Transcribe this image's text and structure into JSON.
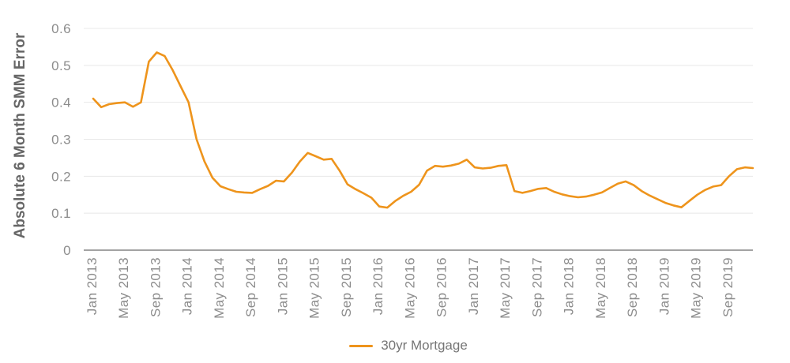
{
  "chart_data": {
    "type": "line",
    "title": "",
    "ylabel": "Absolute 6 Month SMM Error",
    "xlabel": "",
    "ylim": [
      0,
      0.6
    ],
    "yticks": [
      0,
      0.1,
      0.2,
      0.3,
      0.4,
      0.5,
      0.6
    ],
    "ytick_labels": [
      "0",
      "0.1",
      "0.2",
      "0.3",
      "0.4",
      "0.5",
      "0.6"
    ],
    "xtick_every": 4,
    "grid": "horizontal-only",
    "legend_position": "bottom-center",
    "x": [
      "Jan 2013",
      "Feb 2013",
      "Mar 2013",
      "Apr 2013",
      "May 2013",
      "Jun 2013",
      "Jul 2013",
      "Aug 2013",
      "Sep 2013",
      "Oct 2013",
      "Nov 2013",
      "Dec 2013",
      "Jan 2014",
      "Feb 2014",
      "Mar 2014",
      "Apr 2014",
      "May 2014",
      "Jun 2014",
      "Jul 2014",
      "Aug 2014",
      "Sep 2014",
      "Oct 2014",
      "Nov 2014",
      "Dec 2014",
      "Jan 2015",
      "Feb 2015",
      "Mar 2015",
      "Apr 2015",
      "May 2015",
      "Jun 2015",
      "Jul 2015",
      "Aug 2015",
      "Sep 2015",
      "Oct 2015",
      "Nov 2015",
      "Dec 2015",
      "Jan 2016",
      "Feb 2016",
      "Mar 2016",
      "Apr 2016",
      "May 2016",
      "Jun 2016",
      "Jul 2016",
      "Aug 2016",
      "Sep 2016",
      "Oct 2016",
      "Nov 2016",
      "Dec 2016",
      "Jan 2017",
      "Feb 2017",
      "Mar 2017",
      "Apr 2017",
      "May 2017",
      "Jun 2017",
      "Jul 2017",
      "Aug 2017",
      "Sep 2017",
      "Oct 2017",
      "Nov 2017",
      "Dec 2017",
      "Jan 2018",
      "Feb 2018",
      "Mar 2018",
      "Apr 2018",
      "May 2018",
      "Jun 2018",
      "Jul 2018",
      "Aug 2018",
      "Sep 2018",
      "Oct 2018",
      "Nov 2018",
      "Dec 2018",
      "Jan 2019",
      "Feb 2019",
      "Mar 2019",
      "Apr 2019",
      "May 2019",
      "Jun 2019",
      "Jul 2019",
      "Aug 2019",
      "Sep 2019",
      "Oct 2019",
      "Nov 2019",
      "Dec 2019"
    ],
    "series": [
      {
        "name": "30yr Mortgage",
        "color": "#EE941C",
        "values": [
          0.41,
          0.387,
          0.395,
          0.398,
          0.4,
          0.388,
          0.4,
          0.51,
          0.535,
          0.525,
          0.487,
          0.443,
          0.4,
          0.3,
          0.24,
          0.196,
          0.173,
          0.165,
          0.158,
          0.156,
          0.155,
          0.165,
          0.174,
          0.188,
          0.186,
          0.21,
          0.24,
          0.263,
          0.254,
          0.245,
          0.247,
          0.215,
          0.178,
          0.165,
          0.154,
          0.142,
          0.118,
          0.115,
          0.133,
          0.147,
          0.158,
          0.177,
          0.215,
          0.228,
          0.226,
          0.229,
          0.234,
          0.245,
          0.224,
          0.221,
          0.223,
          0.228,
          0.23,
          0.16,
          0.155,
          0.16,
          0.166,
          0.168,
          0.158,
          0.151,
          0.146,
          0.143,
          0.145,
          0.15,
          0.156,
          0.168,
          0.18,
          0.186,
          0.176,
          0.16,
          0.148,
          0.138,
          0.128,
          0.121,
          0.116,
          0.133,
          0.15,
          0.163,
          0.172,
          0.176,
          0.2,
          0.219,
          0.224,
          0.222
        ]
      }
    ],
    "style": {
      "grid_color": "#e8e8e8",
      "axis_line_color": "#a3a3a3",
      "tick_text_color": "#8c8c8c",
      "axis_title_color": "#666666",
      "legend_text_color": "#757575",
      "background": "#ffffff"
    }
  },
  "legend": {
    "label": "30yr Mortgage"
  }
}
